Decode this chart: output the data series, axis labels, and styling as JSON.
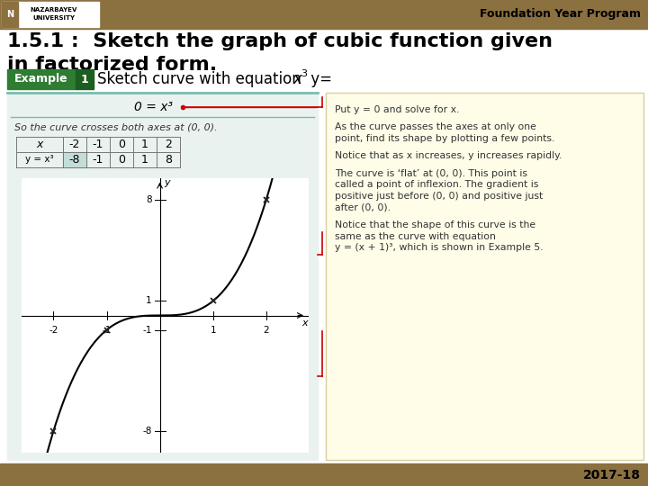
{
  "title_line1": "1.5.1 :  Sketch the graph of cubic function given",
  "title_line2": "in factorized form.",
  "header_text": "Foundation Year Program",
  "footer_text": "2017-18",
  "header_bg_color": "#8B7040",
  "footer_bg_color": "#8B7040",
  "title_color": "#000000",
  "example_bg_color": "#2E7D32",
  "example_num_bg": "#1B5E20",
  "slide_bg": "#FFFFFF",
  "left_panel_bg": "#EAF2EF",
  "left_panel_border_color": "#7BBCB0",
  "yellow_box_bg": "#FFFCE8",
  "yellow_box_border": "#D8CFA0",
  "equation_text": "0 = x³",
  "crosses_text": "So the curve crosses both axes at (0, 0).",
  "table_x_vals": [
    "-2",
    "-1",
    "0",
    "1",
    "2"
  ],
  "table_y_vals": [
    "-8",
    "-1",
    "0",
    "1",
    "8"
  ],
  "graph_xlim": [
    -2.6,
    2.8
  ],
  "graph_ylim": [
    -9.5,
    9.5
  ],
  "curve_color": "#000000",
  "axis_color": "#000000",
  "red_color": "#CC0000",
  "yellow_text_blocks": [
    [
      "Put y = 0 and solve for x."
    ],
    [
      "As the curve passes the axes at only one",
      "point, find its shape by plotting a few points."
    ],
    [
      "Notice that as x increases, y increases rapidly."
    ],
    [
      "The curve is ‘flat’ at (0, 0). This point is",
      "called a point of inflexion. The gradient is",
      "positive just before (0, 0) and positive just",
      "after (0, 0)."
    ],
    [
      "Notice that the shape of this curve is the",
      "same as the curve with equation",
      "y = (x + 1)³, which is shown in Example 5."
    ]
  ]
}
